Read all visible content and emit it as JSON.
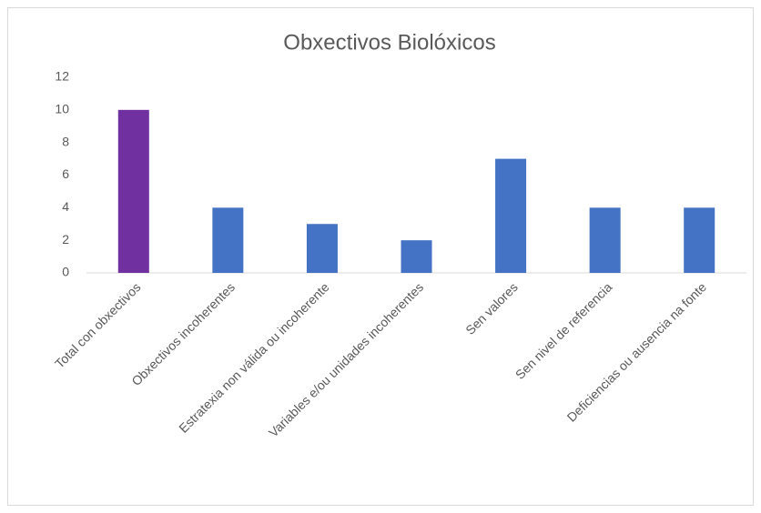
{
  "chart_data": {
    "type": "bar",
    "title": "Obxectivos Biolóxicos",
    "categories": [
      "Total con obxectivos",
      "Obxectivos incoherentes",
      "Estratexia non válida ou incoherente",
      "Variables e/ou unidades incoherentes",
      "Sen valores",
      "Sen nivel de referencia",
      "Deficiencias ou ausencia na fonte"
    ],
    "values": [
      10,
      4,
      3,
      2,
      7,
      4,
      4
    ],
    "colors": [
      "#7030a0",
      "#4472c4",
      "#4472c4",
      "#4472c4",
      "#4472c4",
      "#4472c4",
      "#4472c4"
    ],
    "ylim": [
      0,
      12
    ],
    "yticks": [
      0,
      2,
      4,
      6,
      8,
      10,
      12
    ],
    "grid": false
  }
}
